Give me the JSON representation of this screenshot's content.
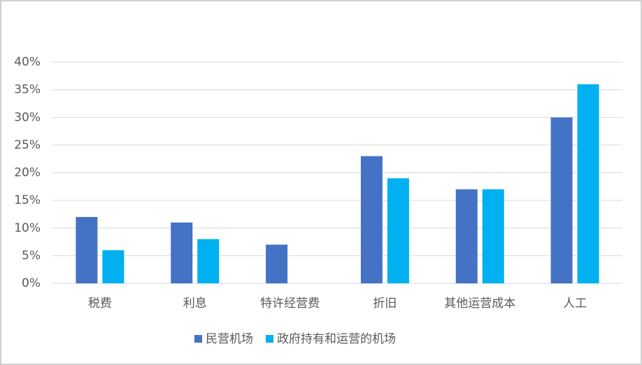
{
  "chart_data": {
    "type": "bar",
    "categories": [
      "税费",
      "利息",
      "特许经营费",
      "折旧",
      "其他运营成本",
      "人工"
    ],
    "series": [
      {
        "name": "民营机场",
        "color": "#4472c4",
        "values": [
          12,
          11,
          7,
          23,
          17,
          30
        ]
      },
      {
        "name": "政府持有和运营的机场",
        "color": "#00b0f0",
        "values": [
          6,
          8,
          null,
          19,
          17,
          36
        ]
      }
    ],
    "ylim": [
      0,
      40
    ],
    "yticks": [
      {
        "value": 0,
        "label": "0%"
      },
      {
        "value": 5,
        "label": "5%"
      },
      {
        "value": 10,
        "label": "10%"
      },
      {
        "value": 15,
        "label": "15%"
      },
      {
        "value": 20,
        "label": "20%"
      },
      {
        "value": 25,
        "label": "25%"
      },
      {
        "value": 30,
        "label": "30%"
      },
      {
        "value": 35,
        "label": "35%"
      },
      {
        "value": 40,
        "label": "40%"
      }
    ],
    "grid": true,
    "legend": "bottom"
  }
}
